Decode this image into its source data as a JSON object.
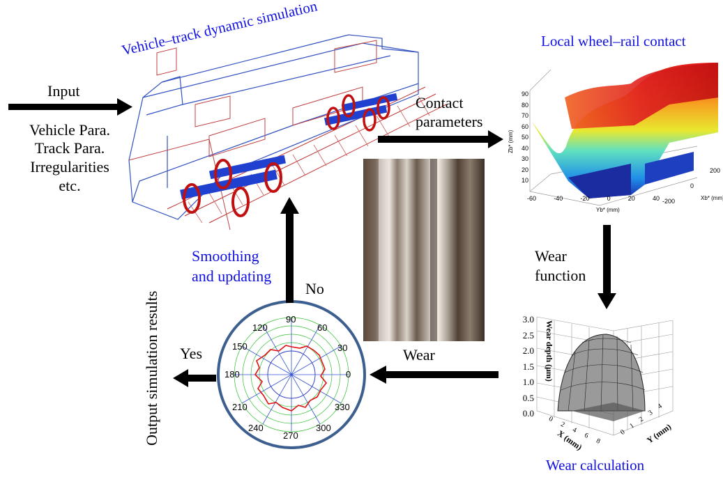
{
  "titles": {
    "vehicle_track": "Vehicle–track dynamic simulation",
    "local_contact": "Local wheel–rail contact",
    "wear_calc": "Wear calculation"
  },
  "labels": {
    "input": "Input",
    "input_list": [
      "Vehicle Para.",
      "Track Para.",
      "Irregularities",
      "etc."
    ],
    "contact_params": [
      "Contact",
      "parameters"
    ],
    "wear_function": [
      "Wear",
      "function"
    ],
    "wear": "Wear",
    "smoothing": [
      "Smoothing",
      "and updating"
    ],
    "no": "No",
    "yes": "Yes",
    "output": "Output simulation results"
  },
  "surface_plot": {
    "zlabel": "Zb* (mm)",
    "xlabel": "Yb* (mm)",
    "ylabel": "Xb* (mm)",
    "z_ticks": [
      "90",
      "80",
      "70",
      "60",
      "50",
      "40",
      "30",
      "20",
      "10"
    ],
    "x_ticks": [
      "-60",
      "-40",
      "-20",
      "0",
      "20",
      "40"
    ],
    "y_ticks": [
      "-200",
      "0",
      "200"
    ]
  },
  "wear_plot": {
    "zlabel": "Wear depth (μm)",
    "xlabel": "X (mm)",
    "ylabel": "Y (mm)",
    "z_ticks": [
      "3.0",
      "2.5",
      "2.0",
      "1.5",
      "1.0",
      "0.5",
      "0.0"
    ],
    "x_ticks": [
      "0",
      "2",
      "4",
      "6",
      "8"
    ],
    "y_ticks": [
      "0",
      "1",
      "2",
      "3",
      "4"
    ]
  },
  "polar_plot": {
    "angles": [
      "90",
      "60",
      "30",
      "0",
      "330",
      "300",
      "270",
      "240",
      "210",
      "180",
      "150",
      "120"
    ]
  },
  "colors": {
    "blue_text": "#1010e0",
    "arrow": "#000000",
    "circle_border": "#3d5f8f",
    "polar_curve": "#e01010"
  }
}
